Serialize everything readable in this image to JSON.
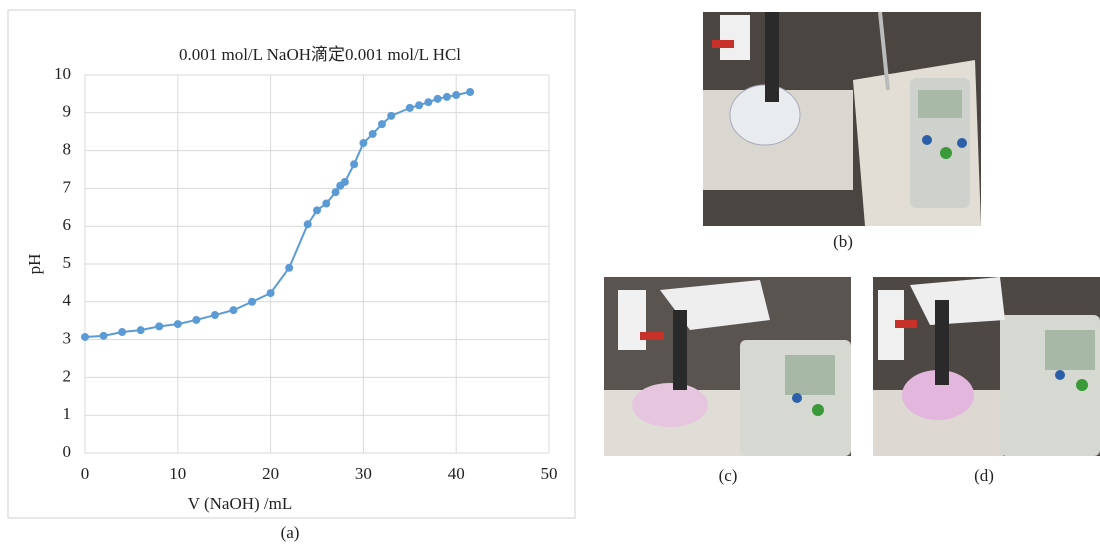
{
  "chart_data": {
    "type": "line",
    "title": "0.001 mol/L NaOH滴定0.001 mol/L HCl",
    "x_label": "V (NaOH) /mL",
    "y_label": "pH",
    "x": [
      0,
      2,
      4,
      6,
      8,
      10,
      12,
      14,
      16,
      18,
      20,
      22,
      24,
      25,
      26,
      27,
      27.5,
      28,
      29,
      30,
      31,
      32,
      33,
      35,
      36,
      37,
      38,
      39,
      40,
      41.5
    ],
    "series": [
      {
        "name": "pH",
        "color": "#5b9bd5",
        "values": [
          3.07,
          3.1,
          3.2,
          3.25,
          3.35,
          3.41,
          3.52,
          3.65,
          3.78,
          4.0,
          4.23,
          4.9,
          6.05,
          6.42,
          6.6,
          6.9,
          7.07,
          7.17,
          7.64,
          8.2,
          8.44,
          8.7,
          8.92,
          9.13,
          9.2,
          9.28,
          9.37,
          9.42,
          9.47,
          9.55
        ]
      }
    ],
    "xlim": [
      0,
      50
    ],
    "ylim": [
      0,
      10
    ],
    "xticks": [
      0,
      10,
      20,
      30,
      40,
      50
    ],
    "yticks": [
      0,
      1,
      2,
      3,
      4,
      5,
      6,
      7,
      8,
      9,
      10
    ],
    "grid": true
  },
  "captions": [
    "(a)",
    "(b)",
    "(c)",
    "(d)"
  ]
}
